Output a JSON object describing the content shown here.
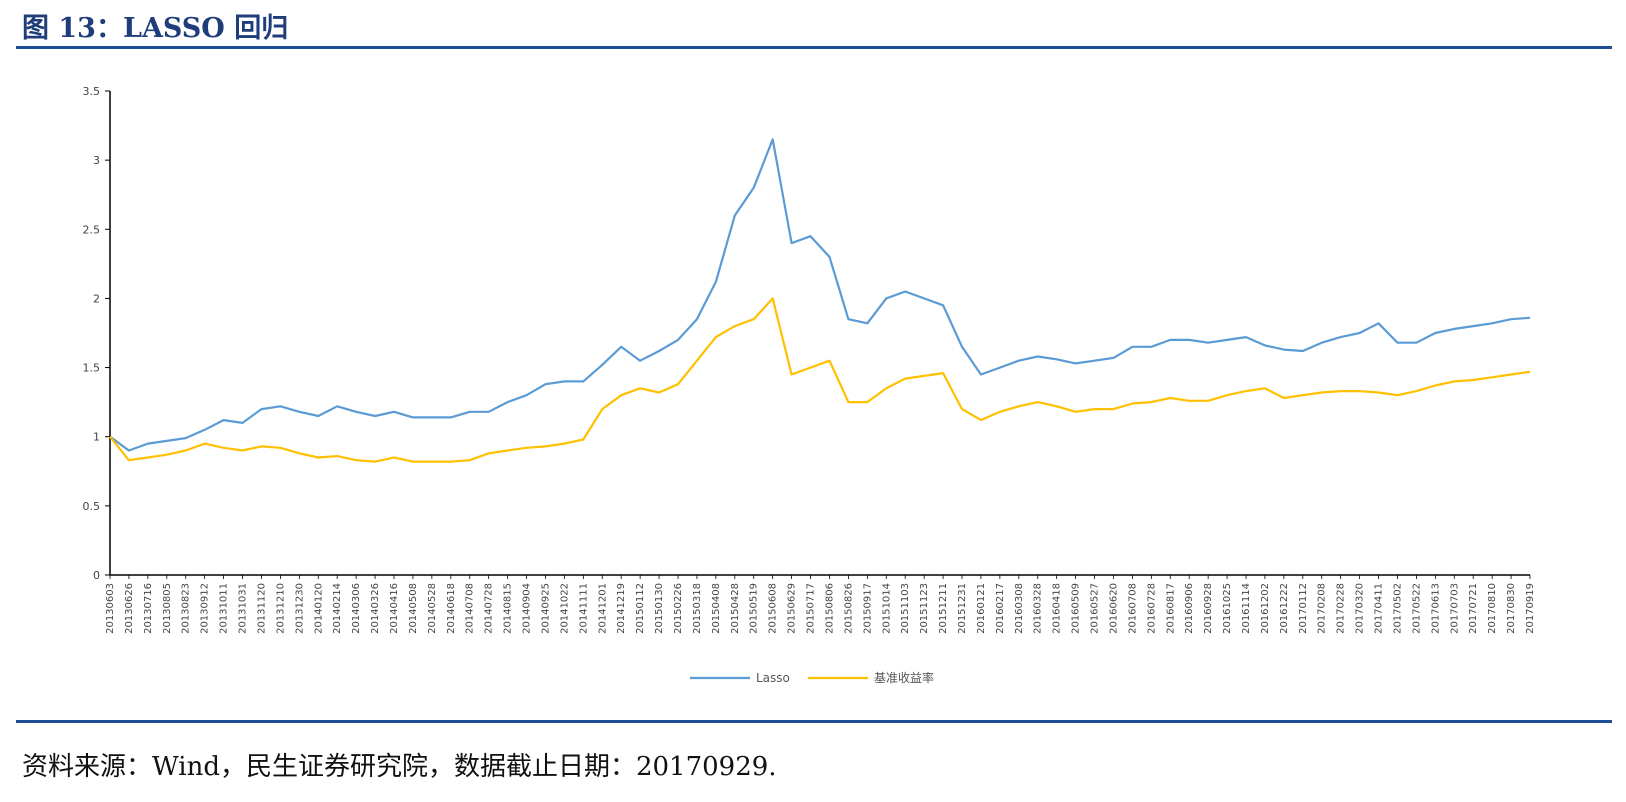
{
  "figure": {
    "title": "图 13：LASSO 回归",
    "source": "资料来源：Wind，民生证券研究院，数据截止日期：20170929."
  },
  "chart_data": {
    "type": "line",
    "title": "",
    "xlabel": "",
    "ylabel": "",
    "ylim": [
      0,
      3.5
    ],
    "yticks": [
      "0",
      "0.5",
      "1",
      "1.5",
      "2",
      "2.5",
      "3",
      "3.5"
    ],
    "grid": false,
    "legend_position": "bottom",
    "categories": [
      "20130603",
      "20130626",
      "20130716",
      "20130805",
      "20130823",
      "20130912",
      "20131011",
      "20131031",
      "20131120",
      "20131210",
      "20131230",
      "20140120",
      "20140214",
      "20140306",
      "20140326",
      "20140416",
      "20140508",
      "20140528",
      "20140618",
      "20140708",
      "20140728",
      "20140815",
      "20140904",
      "20140925",
      "20141022",
      "20141111",
      "20141201",
      "20141219",
      "20150112",
      "20150130",
      "20150226",
      "20150318",
      "20150408",
      "20150428",
      "20150519",
      "20150608",
      "20150629",
      "20150717",
      "20150806",
      "20150826",
      "20150917",
      "20151014",
      "20151103",
      "20151123",
      "20151211",
      "20151231",
      "20160121",
      "20160217",
      "20160308",
      "20160328",
      "20160418",
      "20160509",
      "20160527",
      "20160620",
      "20160708",
      "20160728",
      "20160817",
      "20160906",
      "20160928",
      "20161025",
      "20161114",
      "20161202",
      "20161222",
      "20170112",
      "20170208",
      "20170228",
      "20170320",
      "20170411",
      "20170502",
      "20170522",
      "20170613",
      "20170703",
      "20170721",
      "20170810",
      "20170830",
      "20170919"
    ],
    "series": [
      {
        "name": "Lasso",
        "color": "#5b9bd5",
        "values": [
          1.0,
          0.9,
          0.95,
          0.97,
          0.99,
          1.05,
          1.12,
          1.1,
          1.2,
          1.22,
          1.18,
          1.15,
          1.22,
          1.18,
          1.15,
          1.18,
          1.14,
          1.14,
          1.14,
          1.18,
          1.18,
          1.25,
          1.3,
          1.38,
          1.4,
          1.4,
          1.52,
          1.65,
          1.55,
          1.62,
          1.7,
          1.85,
          2.12,
          2.6,
          2.8,
          3.15,
          2.4,
          2.45,
          2.3,
          1.85,
          1.82,
          2.0,
          2.05,
          2.0,
          1.95,
          1.65,
          1.45,
          1.5,
          1.55,
          1.58,
          1.56,
          1.53,
          1.55,
          1.57,
          1.65,
          1.65,
          1.7,
          1.7,
          1.68,
          1.7,
          1.72,
          1.66,
          1.63,
          1.62,
          1.68,
          1.72,
          1.75,
          1.82,
          1.68,
          1.68,
          1.75,
          1.78,
          1.8,
          1.82,
          1.85,
          1.86
        ]
      },
      {
        "name": "基准收益率",
        "color": "#ffc000",
        "values": [
          1.0,
          0.83,
          0.85,
          0.87,
          0.9,
          0.95,
          0.92,
          0.9,
          0.93,
          0.92,
          0.88,
          0.85,
          0.86,
          0.83,
          0.82,
          0.85,
          0.82,
          0.82,
          0.82,
          0.83,
          0.88,
          0.9,
          0.92,
          0.93,
          0.95,
          0.98,
          1.2,
          1.3,
          1.35,
          1.32,
          1.38,
          1.55,
          1.72,
          1.8,
          1.85,
          2.0,
          1.45,
          1.5,
          1.55,
          1.25,
          1.25,
          1.35,
          1.42,
          1.44,
          1.46,
          1.2,
          1.12,
          1.18,
          1.22,
          1.25,
          1.22,
          1.18,
          1.2,
          1.2,
          1.24,
          1.25,
          1.28,
          1.26,
          1.26,
          1.3,
          1.33,
          1.35,
          1.28,
          1.3,
          1.32,
          1.33,
          1.33,
          1.32,
          1.3,
          1.33,
          1.37,
          1.4,
          1.41,
          1.43,
          1.45,
          1.47
        ]
      }
    ]
  }
}
